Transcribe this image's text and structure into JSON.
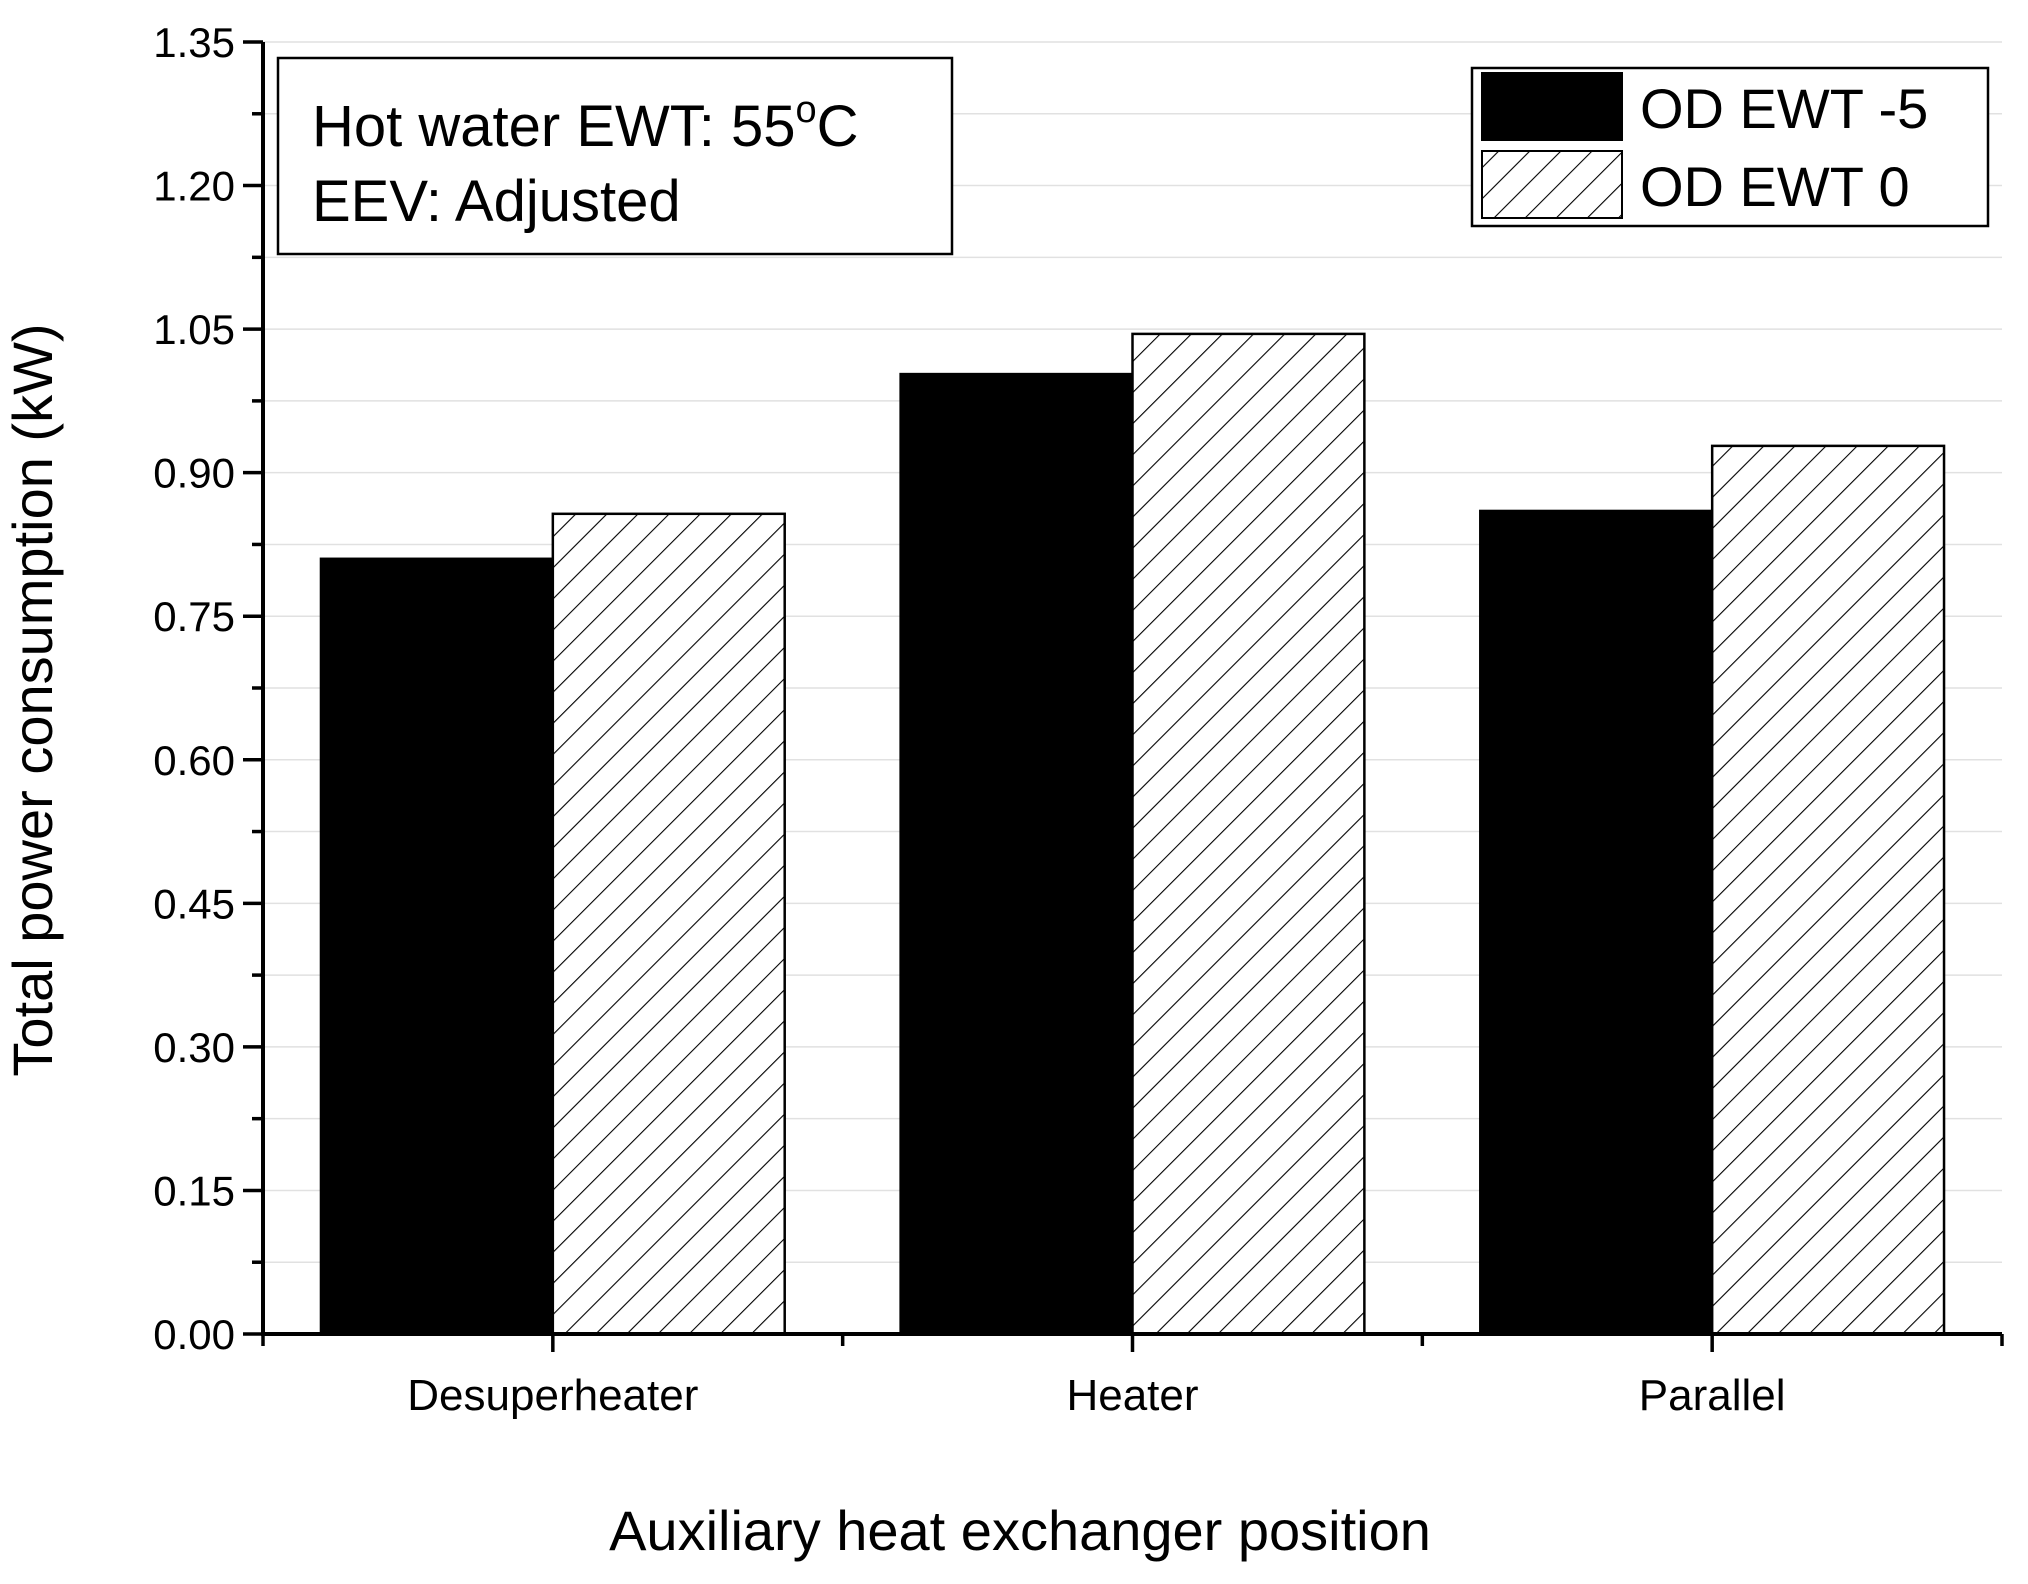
{
  "chart_data": {
    "type": "bar",
    "title": "",
    "xlabel": "Auxiliary heat exchanger position",
    "ylabel": "Total power consumption (kW)",
    "ylim": [
      0,
      1.35
    ],
    "yticks": [
      "0.00",
      "0.15",
      "0.30",
      "0.45",
      "0.60",
      "0.75",
      "0.90",
      "1.05",
      "1.20",
      "1.35"
    ],
    "grid": "horizontal",
    "categories": [
      "Desuperheater",
      "Heater",
      "Parallel"
    ],
    "series": [
      {
        "name": "OD EWT -5",
        "fill": "solid",
        "color": "#000000",
        "values": [
          0.81,
          1.003,
          0.86
        ]
      },
      {
        "name": "OD EWT 0",
        "fill": "hatched",
        "color": "#000000",
        "values": [
          0.857,
          1.045,
          0.928
        ]
      }
    ],
    "annotation": {
      "line1_prefix": "Hot water EWT: 55",
      "line1_superscript": "o",
      "line1_suffix": "C",
      "line2": "EEV: Adjusted"
    },
    "legend_position": "top-right"
  }
}
